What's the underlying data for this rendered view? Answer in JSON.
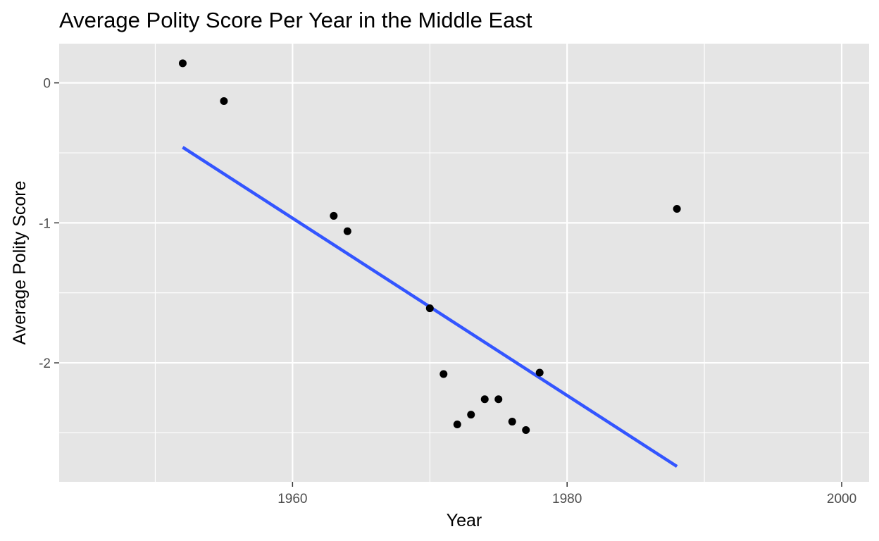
{
  "chart_data": {
    "type": "scatter",
    "title": "Average Polity Score Per Year in the Middle East",
    "xlabel": "Year",
    "ylabel": "Average Polity Score",
    "xlim": [
      1943,
      2002
    ],
    "ylim": [
      -2.85,
      0.28
    ],
    "x_ticks": [
      1960,
      1980,
      2000
    ],
    "x_tick_labels": [
      "1960",
      "1980",
      "2000"
    ],
    "x_minor_ticks": [
      1950,
      1970,
      1990
    ],
    "y_ticks": [
      0,
      -1,
      -2
    ],
    "y_tick_labels": [
      "0",
      "-1",
      "-2"
    ],
    "y_minor_ticks": [
      -0.5,
      -1.5,
      -2.5
    ],
    "grid": true,
    "legend": "none",
    "point_color": "#000000",
    "panel_color": "#e5e5e5",
    "series": [
      {
        "points": [
          {
            "x": 1952,
            "y": 0.14
          },
          {
            "x": 1955,
            "y": -0.13
          },
          {
            "x": 1963,
            "y": -0.95
          },
          {
            "x": 1964,
            "y": -1.06
          },
          {
            "x": 1970,
            "y": -1.61
          },
          {
            "x": 1971,
            "y": -2.08
          },
          {
            "x": 1972,
            "y": -2.44
          },
          {
            "x": 1973,
            "y": -2.37
          },
          {
            "x": 1974,
            "y": -2.26
          },
          {
            "x": 1975,
            "y": -2.26
          },
          {
            "x": 1976,
            "y": -2.42
          },
          {
            "x": 1977,
            "y": -2.48
          },
          {
            "x": 1978,
            "y": -2.07
          },
          {
            "x": 1988,
            "y": -0.9
          }
        ]
      }
    ],
    "trend_line": {
      "color": "#3355ff",
      "x": [
        1952,
        1988
      ],
      "y": [
        -0.46,
        -2.74
      ]
    }
  }
}
